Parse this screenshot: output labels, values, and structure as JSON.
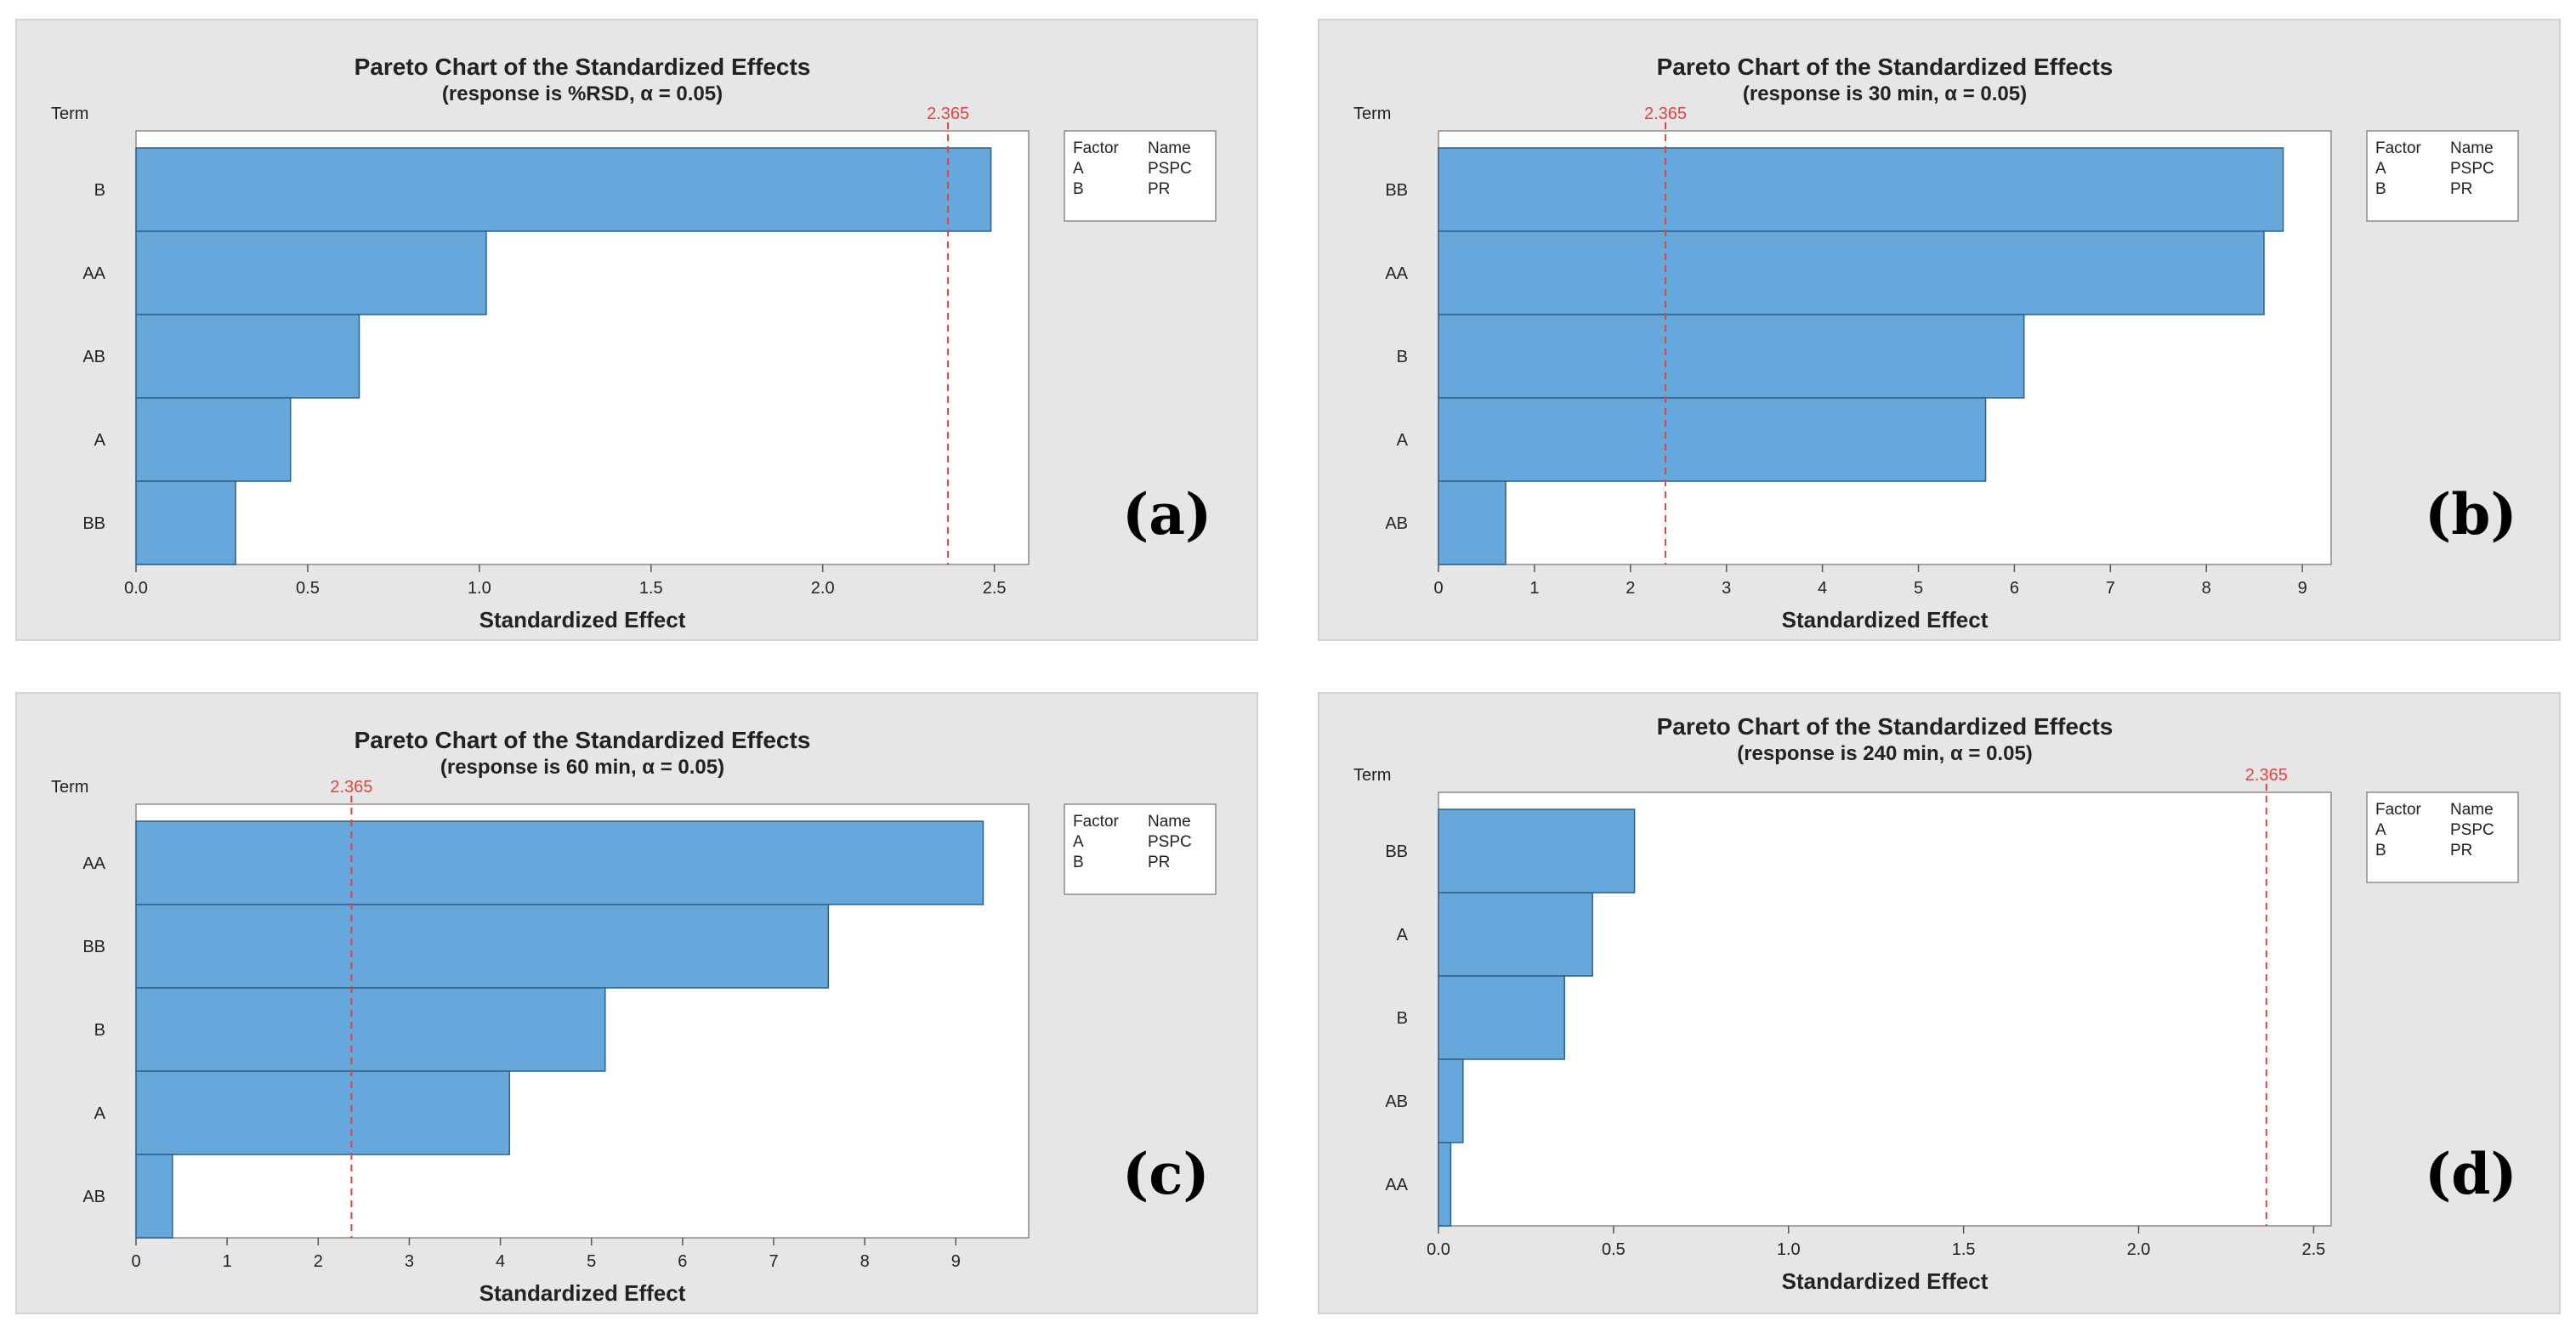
{
  "colors": {
    "panel_bg": "#e6e6e6",
    "plot_bg": "#ffffff",
    "bar_fill": "#66a8dc",
    "bar_stroke": "#2f5f86",
    "ref_line": "#e8413c",
    "text": "#222222"
  },
  "chart_data": [
    {
      "type": "bar",
      "orientation": "horizontal",
      "title": "Pareto Chart of the Standardized Effects",
      "subtitle": "(response is %RSD, α = 0.05)",
      "ylabel": "Term",
      "xlabel": "Standardized Effect",
      "categories": [
        "B",
        "AA",
        "AB",
        "A",
        "BB"
      ],
      "values": [
        2.49,
        1.02,
        0.65,
        0.45,
        0.29
      ],
      "xlim": [
        0,
        2.6
      ],
      "xticks": [
        0,
        0.5,
        1,
        1.5,
        2,
        2.5
      ],
      "xtick_labels": [
        "0.0",
        "0.5",
        "1.0",
        "1.5",
        "2.0",
        "2.5"
      ],
      "reference_value": 2.365,
      "reference_label": "2.365",
      "legend": {
        "headers": [
          "Factor",
          "Name"
        ],
        "rows": [
          [
            "A",
            "PSPC"
          ],
          [
            "B",
            "PR"
          ]
        ],
        "position": "right"
      },
      "panel_letter": "(a)"
    },
    {
      "type": "bar",
      "orientation": "horizontal",
      "title": "Pareto Chart of the Standardized Effects",
      "subtitle": "(response is 30 min, α = 0.05)",
      "ylabel": "Term",
      "xlabel": "Standardized Effect",
      "categories": [
        "BB",
        "AA",
        "B",
        "A",
        "AB"
      ],
      "values": [
        8.8,
        8.6,
        6.1,
        5.7,
        0.7
      ],
      "xlim": [
        0,
        9.3
      ],
      "xticks": [
        0,
        1,
        2,
        3,
        4,
        5,
        6,
        7,
        8,
        9
      ],
      "xtick_labels": [
        "0",
        "1",
        "2",
        "3",
        "4",
        "5",
        "6",
        "7",
        "8",
        "9"
      ],
      "reference_value": 2.365,
      "reference_label": "2.365",
      "legend": {
        "headers": [
          "Factor",
          "Name"
        ],
        "rows": [
          [
            "A",
            "PSPC"
          ],
          [
            "B",
            "PR"
          ]
        ],
        "position": "right"
      },
      "panel_letter": "(b)"
    },
    {
      "type": "bar",
      "orientation": "horizontal",
      "title": "Pareto Chart of the Standardized Effects",
      "subtitle": "(response is 60 min, α = 0.05)",
      "ylabel": "Term",
      "xlabel": "Standardized Effect",
      "categories": [
        "AA",
        "BB",
        "B",
        "A",
        "AB"
      ],
      "values": [
        9.3,
        7.6,
        5.15,
        4.1,
        0.4
      ],
      "xlim": [
        0,
        9.8
      ],
      "xticks": [
        0,
        1,
        2,
        3,
        4,
        5,
        6,
        7,
        8,
        9
      ],
      "xtick_labels": [
        "0",
        "1",
        "2",
        "3",
        "4",
        "5",
        "6",
        "7",
        "8",
        "9"
      ],
      "reference_value": 2.365,
      "reference_label": "2.365",
      "legend": {
        "headers": [
          "Factor",
          "Name"
        ],
        "rows": [
          [
            "A",
            "PSPC"
          ],
          [
            "B",
            "PR"
          ]
        ],
        "position": "right"
      },
      "panel_letter": "(c)"
    },
    {
      "type": "bar",
      "orientation": "horizontal",
      "title": "Pareto Chart of the Standardized Effects",
      "subtitle": "(response is 240 min, α = 0.05)",
      "ylabel": "Term",
      "xlabel": "Standardized Effect",
      "categories": [
        "BB",
        "A",
        "B",
        "AB",
        "AA"
      ],
      "values": [
        0.56,
        0.44,
        0.36,
        0.07,
        0.035
      ],
      "xlim": [
        0,
        2.55
      ],
      "xticks": [
        0,
        0.5,
        1,
        1.5,
        2,
        2.5
      ],
      "xtick_labels": [
        "0.0",
        "0.5",
        "1.0",
        "1.5",
        "2.0",
        "2.5"
      ],
      "reference_value": 2.365,
      "reference_label": "2.365",
      "legend": {
        "headers": [
          "Factor",
          "Name"
        ],
        "rows": [
          [
            "A",
            "PSPC"
          ],
          [
            "B",
            "PR"
          ]
        ],
        "position": "right"
      },
      "panel_letter": "(d)"
    }
  ]
}
